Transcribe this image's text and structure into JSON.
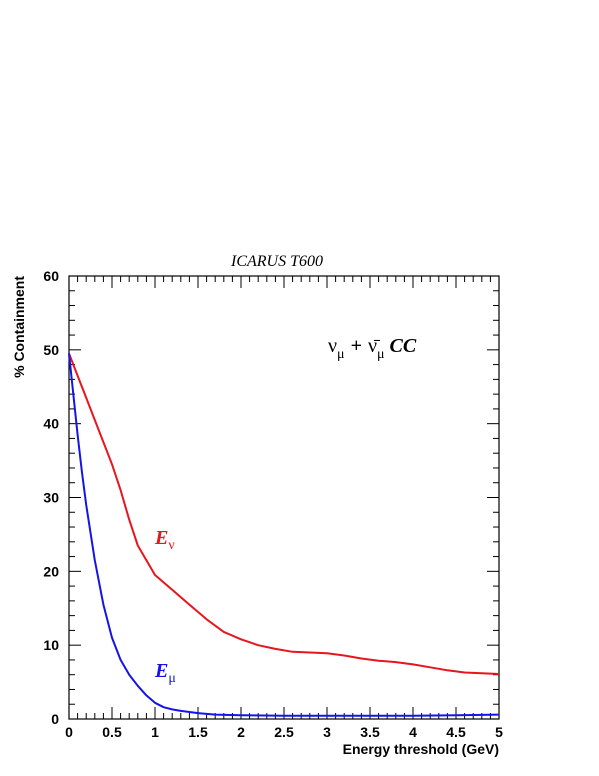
{
  "chart_data": {
    "type": "line",
    "title": "ICARUS  T600",
    "xlabel": "Energy threshold (GeV)",
    "ylabel": "% Containment",
    "xlim": [
      0,
      5
    ],
    "ylim": [
      0,
      60
    ],
    "x_ticks": [
      "0",
      "0.5",
      "1",
      "1.5",
      "2",
      "2.5",
      "3",
      "3.5",
      "4",
      "4.5",
      "5"
    ],
    "y_ticks": [
      "0",
      "10",
      "20",
      "30",
      "40",
      "50",
      "60"
    ],
    "grid": false,
    "annotation": {
      "nu": "ν",
      "mu": "μ",
      "plus": "+",
      "anti_nu": "ν̄",
      "cc": "CC"
    },
    "series": [
      {
        "name": "E",
        "label_sub": "ν",
        "color": "#e8141e",
        "x": [
          0,
          0.1,
          0.2,
          0.3,
          0.4,
          0.5,
          0.6,
          0.7,
          0.8,
          0.9,
          1.0,
          1.1,
          1.2,
          1.4,
          1.6,
          1.8,
          2.0,
          2.2,
          2.4,
          2.6,
          2.8,
          3.0,
          3.2,
          3.4,
          3.6,
          3.8,
          4.0,
          4.2,
          4.4,
          4.6,
          4.8,
          5.0
        ],
        "values": [
          49.5,
          46.5,
          43.5,
          40.5,
          37.5,
          34.5,
          31.0,
          27.0,
          23.5,
          21.5,
          19.5,
          18.5,
          17.5,
          15.5,
          13.5,
          11.8,
          10.8,
          10.0,
          9.5,
          9.1,
          9.0,
          8.9,
          8.6,
          8.2,
          7.9,
          7.7,
          7.4,
          7.0,
          6.6,
          6.3,
          6.2,
          6.1
        ]
      },
      {
        "name": "E",
        "label_sub": "μ",
        "color": "#1414e8",
        "x": [
          0,
          0.05,
          0.1,
          0.15,
          0.2,
          0.3,
          0.4,
          0.5,
          0.6,
          0.7,
          0.8,
          0.9,
          1.0,
          1.1,
          1.2,
          1.3,
          1.5,
          1.7,
          2.0,
          2.5,
          3.0,
          3.5,
          4.0,
          4.5,
          5.0
        ],
        "values": [
          49.5,
          44.0,
          38.5,
          33.5,
          29.0,
          21.5,
          15.5,
          11.0,
          8.0,
          6.0,
          4.5,
          3.2,
          2.2,
          1.6,
          1.3,
          1.1,
          0.8,
          0.6,
          0.5,
          0.45,
          0.45,
          0.45,
          0.45,
          0.5,
          0.6
        ]
      }
    ]
  }
}
